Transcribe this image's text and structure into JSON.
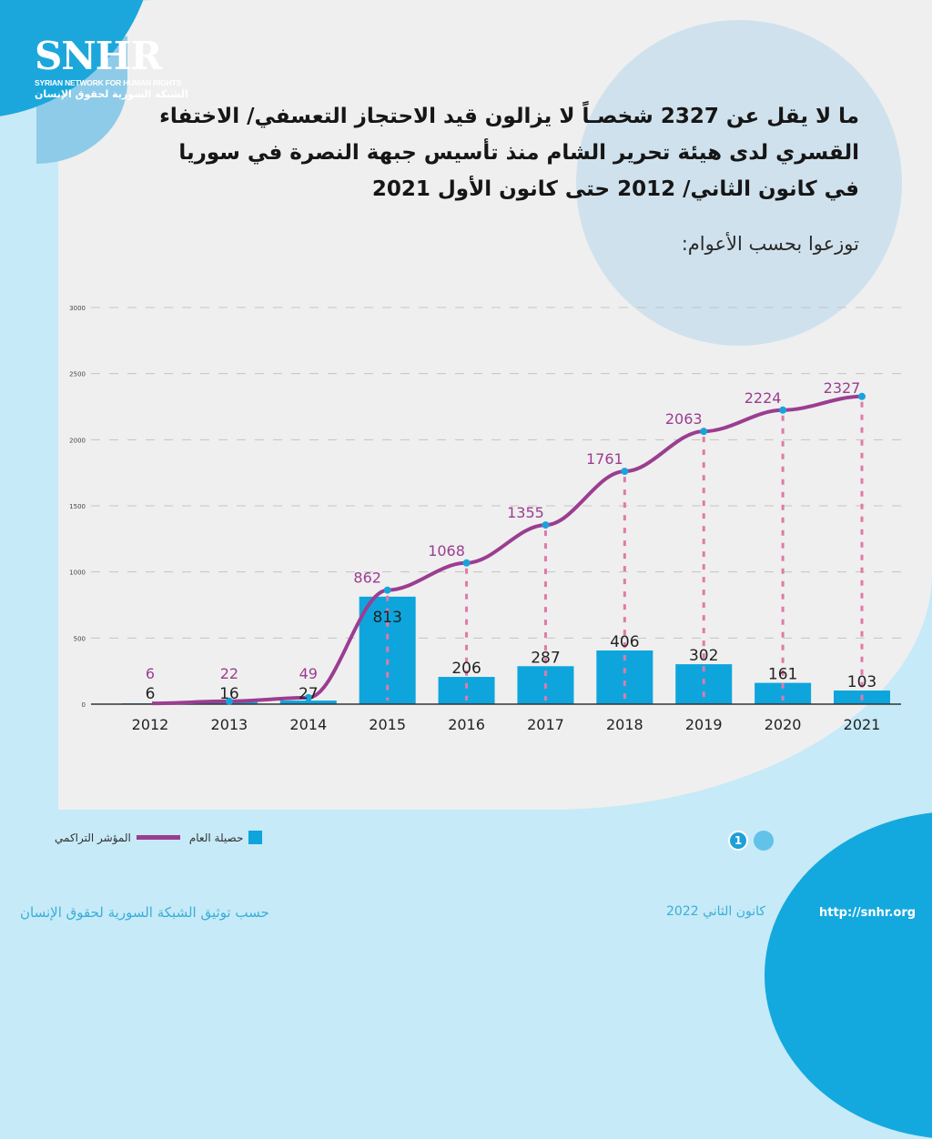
{
  "logo": {
    "mark": "SNHR",
    "name_en": "SYRIAN NETWORK FOR HUMAN RIGHTS",
    "name_ar": "الشبكة السورية لحقوق الإنسان"
  },
  "header": {
    "title_lines": [
      "ما لا يقل عن 2327 شخصـاً لا يزالون قيد الاحتجاز التعسفي/ الاختفاء",
      "القسري لدى هيئة تحرير الشام منذ تأسيس جبهة النصرة في سوريا",
      "في كانون الثاني/ 2012 حتى كانون الأول 2021"
    ],
    "subtitle": "توزعوا بحسب الأعوام:"
  },
  "colors": {
    "bar": "#0ea5dd",
    "line": "#9b3d91",
    "marker": "#1aa3db",
    "guide": "#e07aa8",
    "cumulative_label": "#9b3d91",
    "annual_label": "#222222",
    "grid": "#c4c4c4"
  },
  "chart_data": {
    "type": "bar",
    "title": "ما لا يقل عن 2327 شخصـاً لا يزالون قيد الاحتجاز التعسفي/ الاختفاء القسري لدى هيئة تحرير الشام",
    "xlabel": "",
    "ylabel": "",
    "categories": [
      "2012",
      "2013",
      "2014",
      "2015",
      "2016",
      "2017",
      "2018",
      "2019",
      "2020",
      "2021"
    ],
    "series": [
      {
        "name": "حصيلة العام",
        "type": "bar",
        "values": [
          6,
          16,
          27,
          813,
          206,
          287,
          406,
          302,
          161,
          103
        ]
      },
      {
        "name": "المؤشر التراكمي",
        "type": "line",
        "values": [
          6,
          22,
          49,
          862,
          1068,
          1355,
          1761,
          2063,
          2224,
          2327
        ]
      }
    ],
    "ylim": [
      0,
      3000
    ],
    "yticks": [
      0,
      500,
      1000,
      1500,
      2000,
      2500,
      3000
    ],
    "grid": true,
    "legend_position": "bottom-left"
  },
  "legend": {
    "bar_label": "حصيلة العام",
    "line_label": "المؤشر التراكمي"
  },
  "pager": {
    "current": "1"
  },
  "footer": {
    "source": "حسب توثيق الشبكة السورية لحقوق الإنسان",
    "date": "كانون الثاني 2022",
    "url": "http://snhr.org"
  }
}
